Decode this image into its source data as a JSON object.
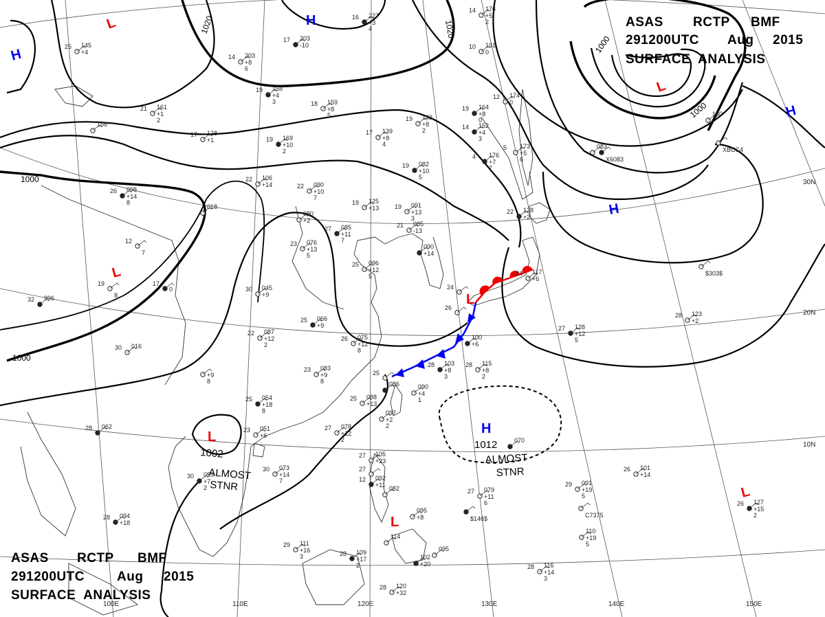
{
  "header_top": {
    "line1": [
      "ASAS",
      "RCTP",
      "BMF"
    ],
    "line2": [
      "291200UTC",
      "Aug",
      "2015"
    ],
    "line3": "SURFACE  ANALYSIS"
  },
  "header_bottom": {
    "line1": [
      "ASAS",
      "RCTP",
      "BMF"
    ],
    "line2": [
      "291200UTC",
      "Aug",
      "2015"
    ],
    "line3": "SURFACE  ANALYSIS"
  },
  "colors": {
    "high": "#0000ee",
    "low": "#ee0000",
    "cold_front": "#0000ee",
    "warm_front": "#ee0000"
  },
  "longitudes": [
    "100E",
    "110E",
    "120E",
    "130E",
    "140E",
    "150E"
  ],
  "latitudes": [
    "30N",
    "20N",
    "10N"
  ],
  "isobar_labels": [
    "1020",
    "1020",
    "1000",
    "1000",
    "1000",
    "1000"
  ],
  "pressure_centers": [
    {
      "type": "H",
      "color": "#0000ee",
      "value": ""
    },
    {
      "type": "H",
      "color": "#0000ee",
      "value": ""
    },
    {
      "type": "H",
      "color": "#0000ee",
      "value": ""
    },
    {
      "type": "H",
      "color": "#0000ee",
      "value": ""
    },
    {
      "type": "H",
      "color": "#0000ee",
      "value": "1012"
    },
    {
      "type": "L",
      "color": "#ee0000",
      "value": ""
    },
    {
      "type": "L",
      "color": "#ee0000",
      "value": ""
    },
    {
      "type": "L",
      "color": "#ee0000",
      "value": ""
    },
    {
      "type": "L",
      "color": "#ee0000",
      "value": "1002"
    },
    {
      "type": "L",
      "color": "#ee0000",
      "value": ""
    },
    {
      "type": "L",
      "color": "#ee0000",
      "value": ""
    }
  ],
  "annotations": [
    {
      "text1": "ALMOST",
      "text2": "STNR"
    },
    {
      "text1": "ALMOST",
      "text2": "STNR"
    }
  ],
  "stations": [
    {
      "t": "16",
      "p": "227",
      "d": "+3",
      "e": "4"
    },
    {
      "t": "14",
      "p": "176",
      "d": "+5",
      "e": "2"
    },
    {
      "t": "25",
      "p": "145",
      "d": "+4",
      "e": ""
    },
    {
      "t": "17",
      "p": "203",
      "d": "-10",
      "e": ""
    },
    {
      "t": "14",
      "p": "203",
      "d": "+8",
      "e": "6"
    },
    {
      "t": "10",
      "p": "191",
      "d": "0",
      "e": ""
    },
    {
      "t": "19",
      "p": "158",
      "d": "+4",
      "e": "3"
    },
    {
      "t": "18",
      "p": "159",
      "d": "+8",
      "e": "5"
    },
    {
      "t": "21",
      "p": "161",
      "d": "+1",
      "e": "2"
    },
    {
      "t": "19",
      "p": "164",
      "d": "+8",
      "e": "0"
    },
    {
      "t": "12",
      "p": "174",
      "d": "0",
      "e": ""
    },
    {
      "t": "19",
      "p": "143",
      "d": "+8",
      "e": "2"
    },
    {
      "t": "14",
      "p": "152",
      "d": "+4",
      "e": "3"
    },
    {
      "t": "",
      "p": "156",
      "d": "",
      "e": ""
    },
    {
      "t": "17",
      "p": "128",
      "d": "+1",
      "e": ""
    },
    {
      "t": "19",
      "p": "169",
      "d": "+10",
      "e": "2"
    },
    {
      "t": "17",
      "p": "139",
      "d": "+8",
      "e": "4"
    },
    {
      "t": "5",
      "p": "173",
      "d": "+5",
      "e": "6"
    },
    {
      "t": "4",
      "p": "176",
      "d": "+7",
      "e": "7"
    },
    {
      "t": "",
      "p": "130",
      "d": "",
      "e": ""
    },
    {
      "t": "",
      "p": "083",
      "d": "",
      "e": ""
    },
    {
      "t": "26",
      "p": "098",
      "d": "+14",
      "e": "8"
    },
    {
      "t": "22",
      "p": "106",
      "d": "+14",
      "e": ""
    },
    {
      "t": "22",
      "p": "090",
      "d": "+10",
      "e": "7"
    },
    {
      "t": "19",
      "p": "082",
      "d": "+10",
      "e": "5"
    },
    {
      "t": "19",
      "p": "125",
      "d": "+13",
      "e": ""
    },
    {
      "t": "19",
      "p": "091",
      "d": "+13",
      "e": "3"
    },
    {
      "t": "22",
      "p": "128",
      "d": "+2",
      "e": ""
    },
    {
      "t": "",
      "p": "018",
      "d": "",
      "e": ""
    },
    {
      "t": "",
      "p": "080",
      "d": "+2",
      "e": ""
    },
    {
      "t": "27",
      "p": "085",
      "d": "+11",
      "e": "7"
    },
    {
      "t": "21",
      "p": "085",
      "d": "-13",
      "e": ""
    },
    {
      "t": "23",
      "p": "076",
      "d": "+13",
      "e": "5"
    },
    {
      "t": "",
      "p": "090",
      "d": "+14",
      "e": ""
    },
    {
      "t": "12",
      "p": "",
      "d": "",
      "e": "7"
    },
    {
      "t": "19",
      "p": "",
      "d": "",
      "e": "8"
    },
    {
      "t": "17",
      "p": "",
      "d": "0",
      "e": ""
    },
    {
      "t": "25",
      "p": "096",
      "d": "+12",
      "e": "5"
    },
    {
      "t": "30",
      "p": "045",
      "d": "+9",
      "e": ""
    },
    {
      "t": "32",
      "p": "996",
      "d": "",
      "e": ""
    },
    {
      "t": "24",
      "p": "",
      "d": "",
      "e": ""
    },
    {
      "t": "24",
      "p": "117",
      "d": "+6",
      "e": ""
    },
    {
      "t": "25",
      "p": "066",
      "d": "+9",
      "e": ""
    },
    {
      "t": "26",
      "p": "",
      "d": "",
      "e": ""
    },
    {
      "t": "28",
      "p": "123",
      "d": "+2",
      "e": ""
    },
    {
      "t": "27",
      "p": "128",
      "d": "+12",
      "e": "5"
    },
    {
      "t": "22",
      "p": "087",
      "d": "+12",
      "e": "2"
    },
    {
      "t": "26",
      "p": "075",
      "d": "+12",
      "e": "8"
    },
    {
      "t": "",
      "p": "100",
      "d": "+6",
      "e": ""
    },
    {
      "t": "30",
      "p": "016",
      "d": "",
      "e": ""
    },
    {
      "t": "23",
      "p": "083",
      "d": "+9",
      "e": "8"
    },
    {
      "t": "28",
      "p": "103",
      "d": "+8",
      "e": "3"
    },
    {
      "t": "28",
      "p": "115",
      "d": "+8",
      "e": "2"
    },
    {
      "t": "25",
      "p": "",
      "d": "",
      "e": ""
    },
    {
      "t": "",
      "p": "086",
      "d": "",
      "e": ""
    },
    {
      "t": "",
      "p": "090",
      "d": "+4",
      "e": "1"
    },
    {
      "t": "",
      "p": "",
      "d": "+9",
      "e": "8"
    },
    {
      "t": "25",
      "p": "054",
      "d": "+18",
      "e": "8"
    },
    {
      "t": "25",
      "p": "088",
      "d": "+13",
      "e": ""
    },
    {
      "t": "",
      "p": "097",
      "d": "+2",
      "e": "2"
    },
    {
      "t": "28",
      "p": "062",
      "d": "",
      "e": ""
    },
    {
      "t": "27",
      "p": "078",
      "d": "+12",
      "e": "2"
    },
    {
      "t": "23",
      "p": "051",
      "d": "+6",
      "e": ""
    },
    {
      "t": "",
      "p": "070",
      "d": "",
      "e": ""
    },
    {
      "t": "27",
      "p": "105",
      "d": "+23",
      "e": ""
    },
    {
      "t": "27",
      "p": "",
      "d": "",
      "e": ""
    },
    {
      "t": "12",
      "p": "092",
      "d": "+11",
      "e": ""
    },
    {
      "t": "",
      "p": "082",
      "d": "",
      "e": ""
    },
    {
      "t": "30",
      "p": "073",
      "d": "+14",
      "e": "7"
    },
    {
      "t": "30",
      "p": "059",
      "d": "+7",
      "e": "2"
    },
    {
      "t": "26",
      "p": "101",
      "d": "+14",
      "e": ""
    },
    {
      "t": "27",
      "p": "079",
      "d": "+11",
      "e": "6"
    },
    {
      "t": "",
      "p": "",
      "d": "",
      "e": "$146$"
    },
    {
      "t": "29",
      "p": "091",
      "d": "+19",
      "e": "5"
    },
    {
      "t": "",
      "p": "",
      "d": "",
      "e": "C7375"
    },
    {
      "t": "28",
      "p": "094",
      "d": "+18",
      "e": ""
    },
    {
      "t": "",
      "p": "",
      "d": "",
      "e": "$303$"
    },
    {
      "t": "",
      "p": "095",
      "d": "+8",
      "e": ""
    },
    {
      "t": "26",
      "p": "127",
      "d": "+15",
      "e": "2"
    },
    {
      "t": "",
      "p": "110",
      "d": "+19",
      "e": "5"
    },
    {
      "t": "29",
      "p": "111",
      "d": "+16",
      "e": "3"
    },
    {
      "t": "28",
      "p": "109",
      "d": "+17",
      "e": "2"
    },
    {
      "t": "",
      "p": "114",
      "d": "",
      "e": ""
    },
    {
      "t": "",
      "p": "095",
      "d": "",
      "e": ""
    },
    {
      "t": "",
      "p": "102",
      "d": "+20",
      "e": ""
    },
    {
      "t": "28",
      "p": "116",
      "d": "+14",
      "e": "3"
    },
    {
      "t": "28",
      "p": "120",
      "d": "+32",
      "e": ""
    },
    {
      "t": "",
      "p": "",
      "d": "",
      "e": "X6083"
    },
    {
      "t": "",
      "p": "",
      "d": "",
      "e": "XBCC4"
    }
  ]
}
